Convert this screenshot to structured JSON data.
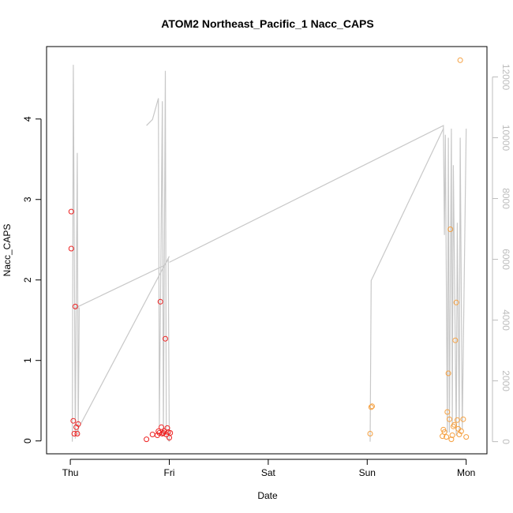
{
  "chart_data": {
    "type": "scatter",
    "title": "ATOM2 Northeast_Pacific_1 Nacc_CAPS",
    "xlabel": "Date",
    "ylabel": "Nacc_CAPS",
    "x_ticks": [
      {
        "x": 0,
        "label": "Thu"
      },
      {
        "x": 1,
        "label": "Fri"
      },
      {
        "x": 2,
        "label": "Sat"
      },
      {
        "x": 3,
        "label": "Sun"
      },
      {
        "x": 4,
        "label": "Mon"
      }
    ],
    "xlim": [
      -0.24,
      4.21
    ],
    "ylim": [
      -0.16,
      4.9
    ],
    "y_ticks": [
      0,
      1,
      2,
      3,
      4
    ],
    "y2lim": [
      -400,
      13000
    ],
    "y2_ticks": [
      0,
      2000,
      4000,
      6000,
      8000,
      10000,
      12000
    ],
    "grid": false,
    "colors": {
      "series_red": "#ee2222",
      "series_orange": "#f5a040",
      "line_gray": "#c8c8c8",
      "right_axis": "#bdbdbd"
    },
    "series": [
      {
        "axis": "left",
        "marker": "circle-open",
        "color": "#ee2222",
        "x": [
          0.01,
          0.01,
          0.03,
          0.04,
          0.05,
          0.06,
          0.07,
          0.08,
          0.77,
          0.83,
          0.88,
          0.89,
          0.9,
          0.91,
          0.92,
          0.93,
          0.94,
          0.95,
          0.96,
          0.97,
          0.98,
          0.99,
          1.0,
          1.01
        ],
        "y": [
          2.85,
          2.39,
          0.25,
          0.09,
          1.67,
          0.17,
          0.09,
          0.21,
          0.02,
          0.08,
          0.07,
          0.12,
          0.1,
          1.73,
          0.17,
          0.09,
          0.1,
          0.12,
          1.27,
          0.08,
          0.16,
          0.11,
          0.04,
          0.1
        ]
      },
      {
        "axis": "left",
        "marker": "circle-open",
        "color": "#f5a040",
        "x": [
          3.03,
          3.04,
          3.05,
          3.76,
          3.77,
          3.78,
          3.8,
          3.81,
          3.82,
          3.83,
          3.84,
          3.85,
          3.86,
          3.87,
          3.88,
          3.89,
          3.9,
          3.91,
          3.92,
          3.93,
          3.94,
          3.95,
          3.97,
          4.0
        ],
        "y": [
          0.09,
          0.42,
          0.43,
          0.06,
          0.14,
          0.11,
          0.05,
          0.36,
          0.84,
          0.27,
          2.63,
          0.02,
          0.07,
          0.18,
          0.2,
          1.25,
          1.72,
          0.26,
          0.15,
          0.08,
          4.73,
          0.12,
          0.27,
          0.05
        ]
      },
      {
        "axis": "right",
        "marker": "line",
        "color": "#c8c8c8",
        "segments": [
          {
            "x": [
              0.02,
              0.03,
              0.05,
              0.07,
              0.08,
              0.09,
              0.05,
              0.95,
              0.99,
              1.0
            ],
            "y": [
              0,
              12400,
              100,
              9500,
              200,
              4400,
              4400,
              5800,
              6000,
              0
            ]
          },
          {
            "x": [
              0.06,
              1.0
            ],
            "y": [
              300,
              6100
            ]
          },
          {
            "x": [
              0.77,
              0.83,
              0.89,
              0.9,
              0.93,
              0.94,
              0.96,
              0.97,
              1.0
            ],
            "y": [
              10400,
              10600,
              11300,
              500,
              11200,
              200,
              12200,
              200,
              0
            ]
          },
          {
            "x": [
              1.0,
              3.77,
              3.78,
              3.79,
              3.81,
              3.82,
              3.83,
              3.85,
              3.86,
              3.87,
              3.9,
              3.91,
              3.93,
              3.94,
              3.96,
              4.0
            ],
            "y": [
              5900,
              10400,
              6800,
              10100,
              300,
              10000,
              300,
              10300,
              500,
              9100,
              200,
              7200,
              300,
              10000,
              400,
              10300
            ]
          },
          {
            "x": [
              3.03,
              3.04,
              3.77
            ],
            "y": [
              0,
              5300,
              10300
            ]
          }
        ]
      }
    ]
  }
}
